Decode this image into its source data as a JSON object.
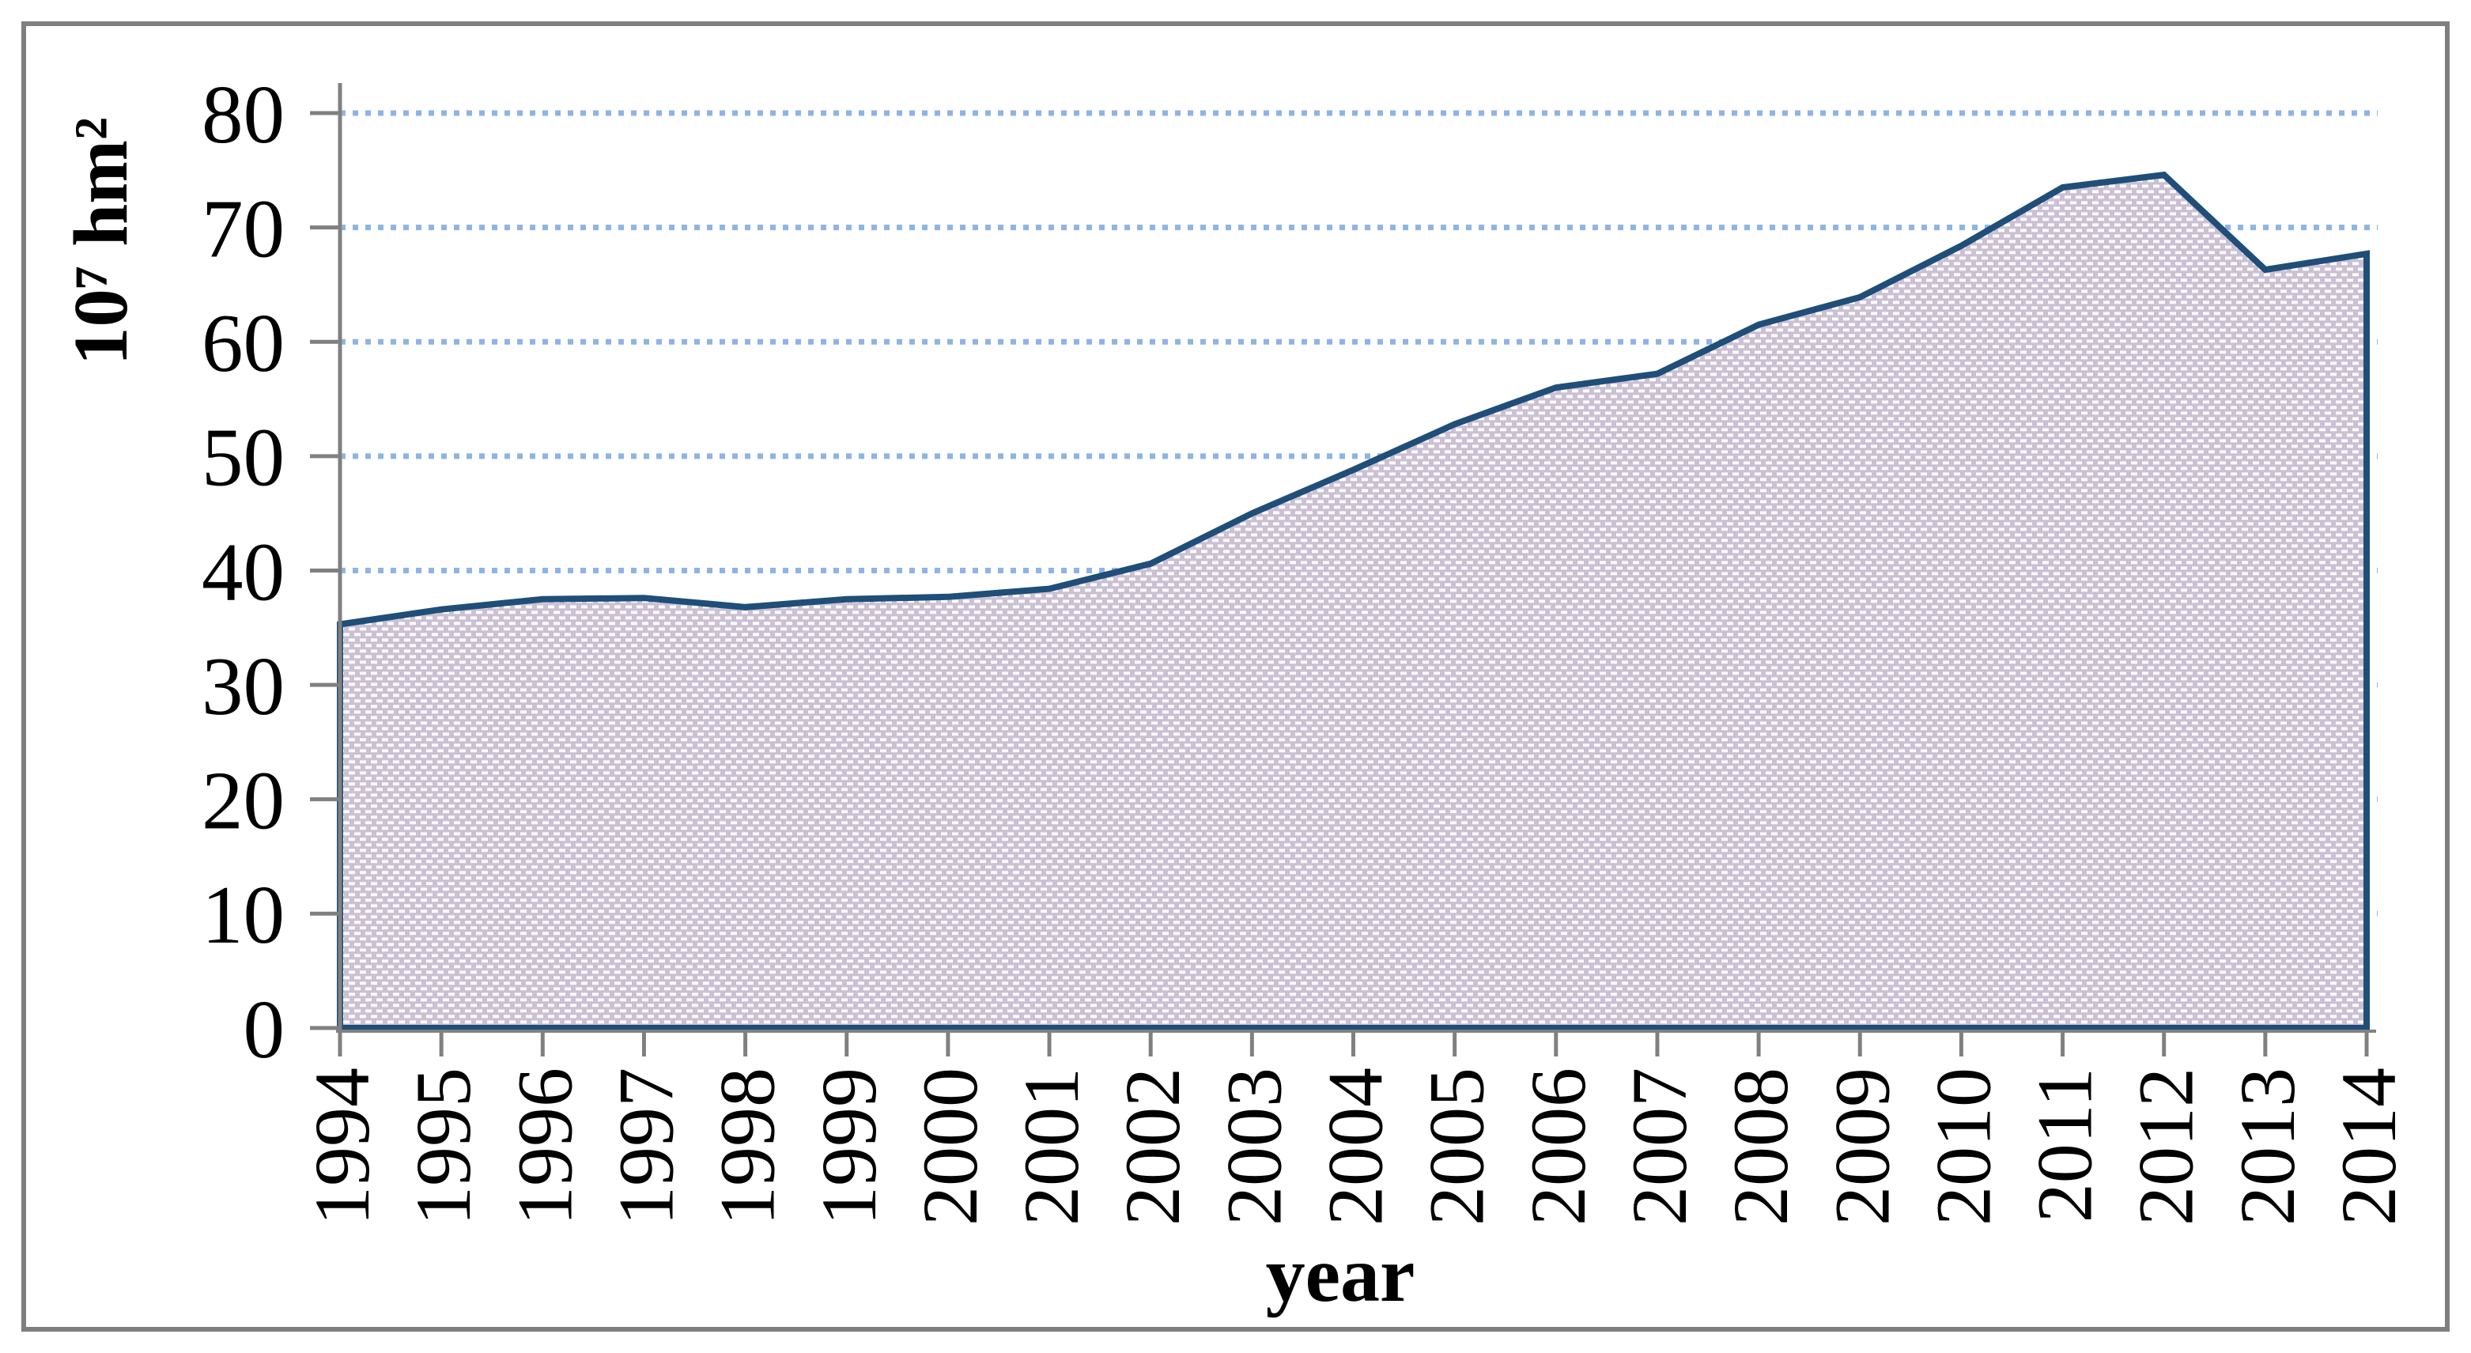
{
  "chart_data": {
    "type": "area",
    "title": "",
    "xlabel": "year",
    "ylabel": "10⁷ hm²",
    "categories": [
      "1994",
      "1995",
      "1996",
      "1997",
      "1998",
      "1999",
      "2000",
      "2001",
      "2002",
      "2003",
      "2004",
      "2005",
      "2006",
      "2007",
      "2008",
      "2009",
      "2010",
      "2011",
      "2012",
      "2013",
      "2014"
    ],
    "values": [
      35.3,
      36.6,
      37.5,
      37.6,
      36.8,
      37.5,
      37.7,
      38.4,
      40.6,
      45.0,
      48.8,
      52.8,
      56.0,
      57.2,
      61.5,
      63.9,
      68.4,
      73.5,
      74.6,
      66.3,
      67.7
    ],
    "ylim": [
      0,
      80
    ],
    "yticks": [
      0,
      10,
      20,
      30,
      40,
      50,
      60,
      70,
      80
    ],
    "grid": "horizontal-dotted",
    "legend": "none",
    "colors": {
      "line": "#1f4e79",
      "fill_base": "#cbc0d4",
      "fill_dash": "#ffffff",
      "gridline": "#8eb4e3",
      "axis": "#808080",
      "frame": "#7f7f7f",
      "text": "#000000"
    }
  }
}
